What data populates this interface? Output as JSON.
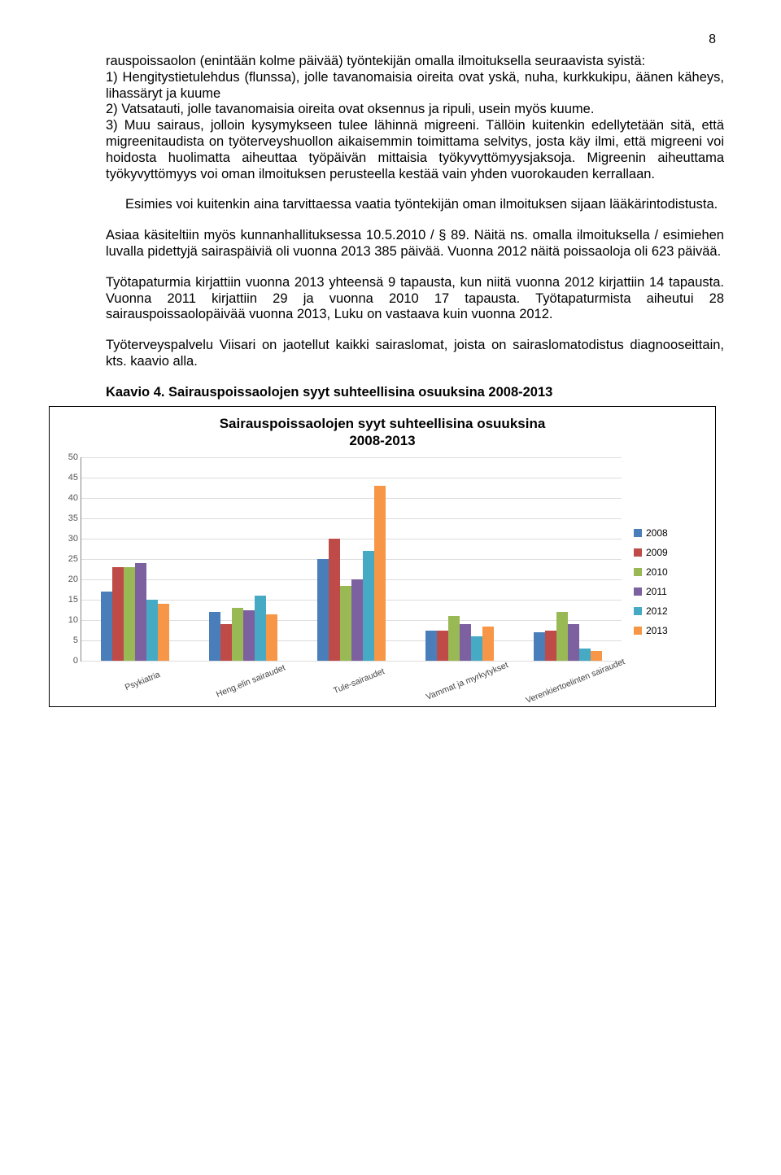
{
  "page_number": "8",
  "para_intro": "rauspoissaolon (enintään kolme päivää) työntekijän omalla ilmoituksella seuraavista syistä:",
  "item1": "1) Hengitystietulehdus (flunssa), jolle tavanomaisia oireita ovat yskä, nuha, kurkkukipu, äänen käheys, lihassäryt ja kuume",
  "item2": "2) Vatsatauti, jolle tavanomaisia oireita ovat oksennus ja ripuli, usein myös kuume.",
  "item3": "3) Muu sairaus, jolloin kysymykseen tulee lähinnä migreeni. Tällöin kuitenkin edellytetään sitä, että migreenitaudista on työterveyshuollon aikaisemmin toimittama selvitys, josta käy ilmi, että migreeni voi hoidosta huolimatta aiheuttaa työpäivän mittaisia työkyvyttömyysjaksoja. Migreenin aiheuttama työkyvyttömyys voi oman ilmoituksen perusteella kestää vain yhden vuorokauden kerrallaan.",
  "para_esimies": "Esimies voi kuitenkin aina tarvittaessa vaatia työntekijän oman ilmoituksen sijaan lääkärintodistusta.",
  "para_asia": "Asiaa käsiteltiin myös kunnanhallitu­ksessa 10.5.2010 / § 89. Näitä ns. omalla ilmoituksella / esimiehen luvalla pidettyjä sairaspäiviä oli vuonna 2013 385 päivää. Vuonna 2012 näitä poissaoloja oli 623 päivää.",
  "para_tapaturma": "Työtapaturmia kirjattiin vuonna 2013 yhteensä 9 tapausta, kun niitä vuonna 2012 kirjattiin 14 tapausta. Vuonna 2011 kirjattiin 29 ja vuonna 2010 17 tapausta. Työtapaturmista aiheutui 28 sairauspoissaolopäivää vuonna 2013, Luku on vastaava kuin vuonna 2012.",
  "para_viisari": "Työterveyspalvelu Viisari on jaotellut kaikki sairaslomat, joista on sairaslomatodistus diagnooseittain, kts. kaavio alla.",
  "kaavio_label": "Kaavio 4. Sairauspoissaolojen syyt suhteellisina osuuksina 2008-2013",
  "chart": {
    "title_line1": "Sairauspoissaolojen syyt suhteellisina osuuksina",
    "title_line2": "2008-2013",
    "ylim_max": 50,
    "ytick_step": 5,
    "yticks": [
      0,
      5,
      10,
      15,
      20,
      25,
      30,
      35,
      40,
      45,
      50
    ],
    "categories": [
      "Psykiatria",
      "Heng.elin sairaudet",
      "Tule-sairaudet",
      "Vammat ja myrkytykset",
      "Verenkiertoelinten sairaudet"
    ],
    "series": [
      {
        "name": "2008",
        "color": "#4a7ebb"
      },
      {
        "name": "2009",
        "color": "#be4b48"
      },
      {
        "name": "2010",
        "color": "#98b954"
      },
      {
        "name": "2011",
        "color": "#7d60a0"
      },
      {
        "name": "2012",
        "color": "#46aac5"
      },
      {
        "name": "2013",
        "color": "#f79646"
      }
    ],
    "data": [
      [
        17,
        23,
        23,
        24,
        15,
        14
      ],
      [
        12,
        9,
        13,
        12.5,
        16,
        11.5
      ],
      [
        25,
        30,
        18.5,
        20,
        27,
        43
      ],
      [
        7.5,
        7.5,
        11,
        9,
        6,
        8.5
      ],
      [
        7,
        7.5,
        12,
        9,
        3,
        2.5
      ]
    ]
  }
}
